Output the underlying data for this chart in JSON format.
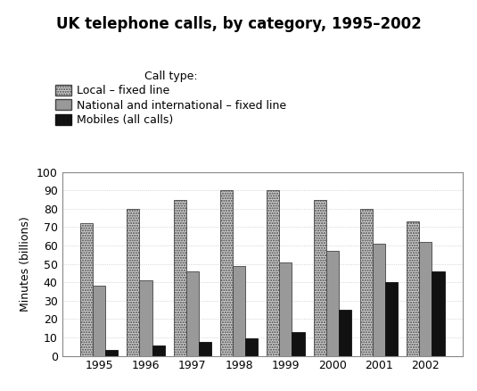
{
  "title": "UK telephone calls, by category, 1995–2002",
  "ylabel": "Minutes (billions)",
  "years": [
    1995,
    1996,
    1997,
    1998,
    1999,
    2000,
    2001,
    2002
  ],
  "local_fixed": [
    72,
    80,
    85,
    90,
    90,
    85,
    80,
    73
  ],
  "national_fixed": [
    38,
    41,
    46,
    49,
    51,
    57,
    61,
    62
  ],
  "mobiles": [
    3,
    5.5,
    7.5,
    9.5,
    13,
    25,
    40,
    46
  ],
  "ylim": [
    0,
    100
  ],
  "yticks": [
    0,
    10,
    20,
    30,
    40,
    50,
    60,
    70,
    80,
    90,
    100
  ],
  "legend_labels": [
    "Local – fixed line",
    "National and international – fixed line",
    "Mobiles (all calls)"
  ],
  "legend_title": "Call type:",
  "bar_width": 0.27,
  "title_fontsize": 12,
  "axis_fontsize": 9,
  "legend_fontsize": 9
}
